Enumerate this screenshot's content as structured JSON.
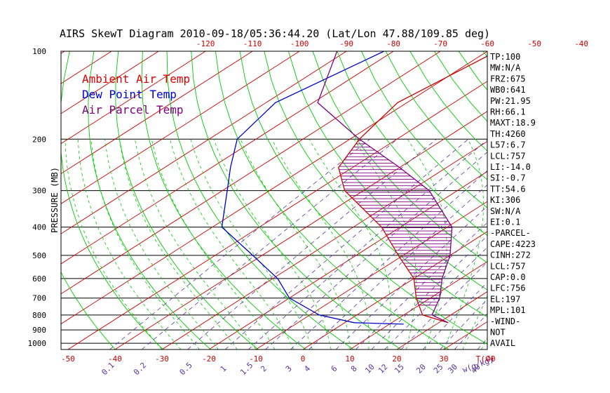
{
  "chart_data": {
    "type": "skew-t",
    "title": "AIRS SkewT Diagram 2010-09-18/05:36:44.20 (Lat/Lon 47.88/109.85 deg)",
    "ylabel": "PRESSURE (MB)",
    "xlabel_temp": "T(C)",
    "xlabel_mixing": "w(g/kg)",
    "pressure_ticks": [
      100,
      200,
      300,
      400,
      500,
      600,
      700,
      800,
      900,
      1000
    ],
    "top_temp_ticks": [
      -120,
      -110,
      -100,
      -90,
      -80,
      -70,
      -60,
      -50,
      -40
    ],
    "bottom_temp_ticks": [
      -50,
      -40,
      -30,
      -20,
      -10,
      0,
      10,
      20,
      30,
      40
    ],
    "mixing_ratio_ticks": [
      "0.1",
      "0.2",
      "0.5",
      "1",
      "1.5",
      "2",
      "3",
      "4",
      "6",
      "8",
      "10",
      "12",
      "15",
      "20",
      "25",
      "30",
      "40"
    ],
    "legend": [
      {
        "label": "Ambient Air Temp",
        "color": "#dd0000"
      },
      {
        "label": "Dew Point Temp",
        "color": "#0000dd"
      },
      {
        "label": "Air Parcel Temp",
        "color": "#800080"
      }
    ],
    "series": [
      {
        "name": "Ambient Air Temp",
        "color": "#cc0000",
        "points": [
          [
            100,
            -58
          ],
          [
            150,
            -62
          ],
          [
            200,
            -58
          ],
          [
            250,
            -53
          ],
          [
            300,
            -44
          ],
          [
            400,
            -24
          ],
          [
            500,
            -11
          ],
          [
            600,
            0
          ],
          [
            700,
            7
          ],
          [
            800,
            14
          ],
          [
            850,
            22
          ]
        ]
      },
      {
        "name": "Dew Point Temp",
        "color": "#0000cc",
        "points": [
          [
            100,
            -82
          ],
          [
            150,
            -88
          ],
          [
            200,
            -84
          ],
          [
            250,
            -76
          ],
          [
            300,
            -69
          ],
          [
            400,
            -58
          ],
          [
            500,
            -42
          ],
          [
            600,
            -29
          ],
          [
            700,
            -20
          ],
          [
            800,
            -8
          ],
          [
            850,
            2
          ],
          [
            860,
            13
          ]
        ]
      },
      {
        "name": "Air Parcel Temp",
        "color": "#800080",
        "points": [
          [
            100,
            -92
          ],
          [
            150,
            -79
          ],
          [
            200,
            -58
          ],
          [
            250,
            -40
          ],
          [
            300,
            -26
          ],
          [
            400,
            -9
          ],
          [
            500,
            0
          ],
          [
            600,
            6
          ],
          [
            700,
            12
          ],
          [
            800,
            16
          ],
          [
            850,
            22
          ]
        ]
      }
    ],
    "stats": [
      "TP:100",
      "MW:N/A",
      "FRZ:675",
      "WB0:641",
      "PW:21.95",
      "RH:66.1",
      "MAXT:18.9",
      "TH:4260",
      "L57:6.7",
      "LCL:757",
      "LI:-14.0",
      "SI:-0.7",
      "TT:54.6",
      "KI:306",
      "SW:N/A",
      "EI:0.1",
      "-PARCEL-",
      "CAPE:4223",
      "CINH:272",
      "LCL:757",
      "CAP:0.0",
      "LFC:756",
      "EL:197",
      "MPL:101",
      "-WIND-",
      "NOT",
      "AVAIL"
    ],
    "colors": {
      "frame": "#000000",
      "isotherm": "#cc0000",
      "dry_adiabat": "#00cc00",
      "moist_adiabat": "#00cc00",
      "mixing_ratio": "#5a32a0",
      "hatch": "#800080"
    }
  }
}
